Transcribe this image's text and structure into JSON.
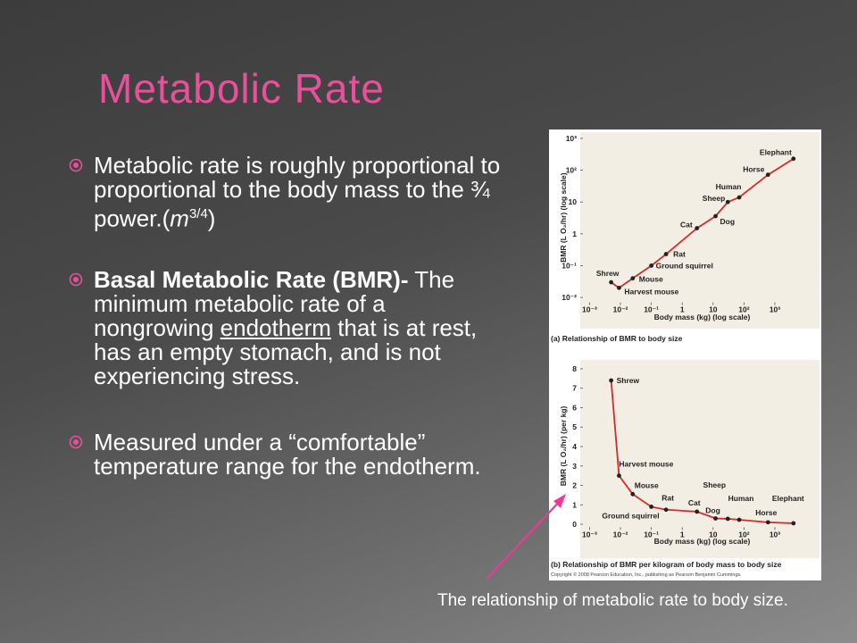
{
  "title": "Metabolic Rate",
  "bullets": [
    {
      "text": "Metabolic rate is roughly proportional to proportional to the body mass to the ¾ power.(",
      "formula_base": "m",
      "formula_exp": "3/4",
      "text_end": ")"
    },
    {
      "bold": "Basal Metabolic Rate (BMR)-",
      "text": " The minimum metabolic rate of a nongrowing ",
      "underlined": "endotherm",
      "text_end": " that is at rest, has an empty stomach, and is not experiencing stress."
    },
    {
      "text": "Measured under a “comfortable” temperature range for the endotherm."
    }
  ],
  "figure_caption": "The relationship of metabolic rate to body size.",
  "copyright": "Copyright © 2008 Pearson Education, Inc., publishing as Pearson Benjamin Cummings.",
  "chart_data": [
    {
      "type": "scatter",
      "caption": "(a) Relationship of BMR to body size",
      "xlabel": "Body mass (kg) (log scale)",
      "ylabel": "BMR (L O₂/hr) (log scale)",
      "x_log": true,
      "y_log": true,
      "color": "#222222",
      "line_color": "#d42a2a",
      "labels": [
        "Shrew",
        "Harvest mouse",
        "Mouse",
        "Ground squirrel",
        "Rat",
        "Cat",
        "Dog",
        "Sheep",
        "Human",
        "Horse",
        "Elephant"
      ],
      "x": [
        0.005,
        0.009,
        0.025,
        0.1,
        0.3,
        3,
        12,
        30,
        70,
        600,
        4000
      ],
      "values": [
        0.03,
        0.02,
        0.04,
        0.1,
        0.23,
        1.5,
        3.6,
        10,
        14,
        72,
        230
      ],
      "xlim": [
        0.0005,
        20000
      ],
      "ylim": [
        0.007,
        1500
      ],
      "xticks": [
        {
          "value": 0.001,
          "label": "10⁻³"
        },
        {
          "value": 0.01,
          "label": "10⁻²"
        },
        {
          "value": 0.1,
          "label": "10⁻¹"
        },
        1,
        10,
        {
          "value": 100,
          "label": "10²"
        },
        {
          "value": 1000,
          "label": "10³"
        }
      ],
      "yticks": [
        {
          "value": 0.01,
          "label": "10⁻²"
        },
        {
          "value": 0.1,
          "label": "10⁻¹"
        },
        1,
        10,
        {
          "value": 100,
          "label": "10²"
        },
        {
          "value": 1000,
          "label": "10³"
        }
      ]
    },
    {
      "type": "scatter",
      "caption": "(b) Relationship of BMR per kilogram of body mass to body size",
      "xlabel": "Body mass (kg) (log scale)",
      "ylabel": "BMR (L O₂/hr) (per kg)",
      "x_log": true,
      "y_log": false,
      "color": "#222222",
      "line_color": "#d42a2a",
      "labels": [
        "Shrew",
        "Harvest mouse",
        "Mouse",
        "Ground squirrel",
        "Rat",
        "Cat",
        "Dog",
        "Sheep",
        "Human",
        "Horse",
        "Elephant"
      ],
      "x": [
        0.005,
        0.009,
        0.025,
        0.1,
        0.3,
        3,
        12,
        30,
        70,
        600,
        4000
      ],
      "values": [
        7.4,
        2.5,
        1.55,
        0.9,
        0.75,
        0.65,
        0.3,
        0.28,
        0.23,
        0.1,
        0.05
      ],
      "xlim": [
        0.0005,
        20000
      ],
      "ylim": [
        -0.15,
        8.2
      ],
      "xticks": [
        {
          "value": 0.001,
          "label": "10⁻³"
        },
        {
          "value": 0.01,
          "label": "10⁻²"
        },
        {
          "value": 0.1,
          "label": "10⁻¹"
        },
        1,
        10,
        {
          "value": 100,
          "label": "10²"
        },
        {
          "value": 1000,
          "label": "10³"
        }
      ],
      "yticks": [
        0,
        1,
        2,
        3,
        4,
        5,
        6,
        7,
        8
      ]
    }
  ]
}
